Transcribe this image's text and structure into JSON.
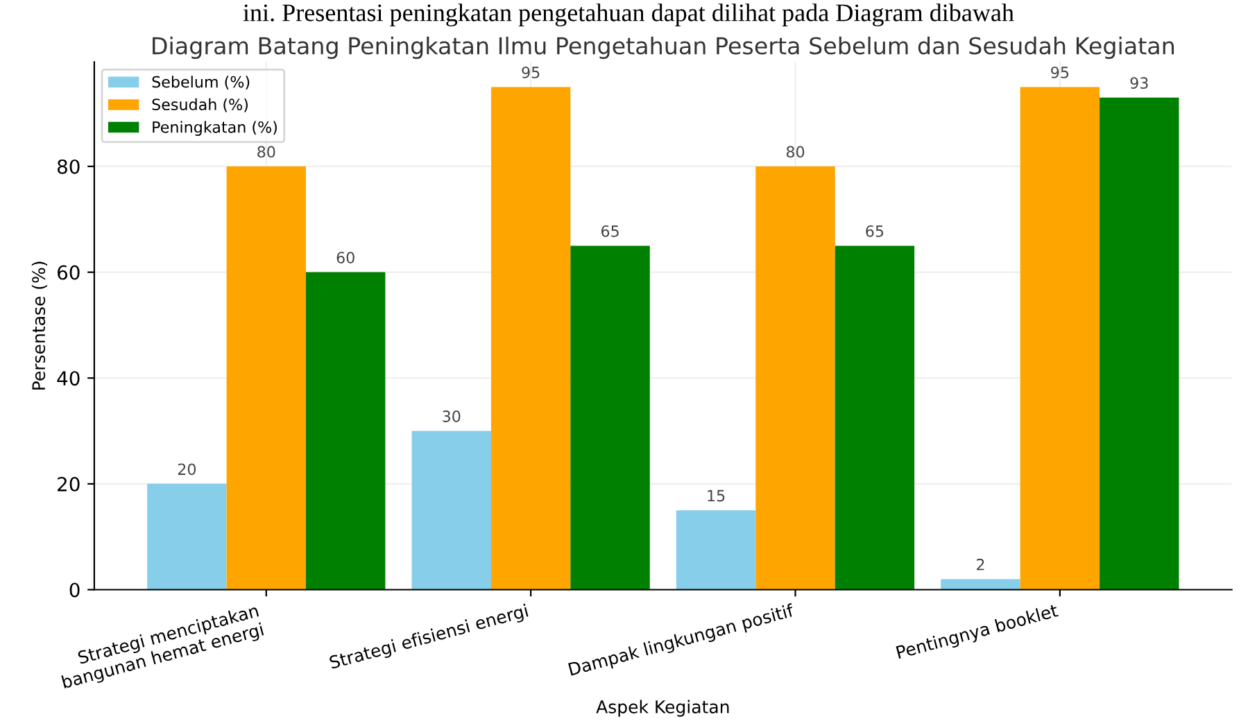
{
  "chart_data": {
    "type": "bar",
    "title": "Diagram Batang Peningkatan Ilmu Pengetahuan Peserta Sebelum dan Sesudah Kegiatan",
    "annotations": [
      "ini. Presentasi peningkatan pengetahuan dapat dilihat pada Diagram dibawah"
    ],
    "xlabel": "Aspek Kegiatan",
    "ylabel": "Persentase (%)",
    "categories": [
      "Strategi menciptakan\nbangunan hemat energi",
      "Strategi efisiensi energi",
      "Dampak lingkungan positif",
      "Pentingnya booklet"
    ],
    "series": [
      {
        "name": "Sebelum (%)",
        "color": "#87ceeb",
        "values": [
          20,
          30,
          15,
          2
        ]
      },
      {
        "name": "Sesudah (%)",
        "color": "#ffa500",
        "values": [
          80,
          95,
          80,
          95
        ]
      },
      {
        "name": "Peningkatan (%)",
        "color": "#008000",
        "values": [
          60,
          65,
          65,
          93
        ]
      }
    ],
    "ylim": [
      0,
      99.75
    ],
    "yticks": [
      0,
      20,
      40,
      60,
      80
    ],
    "grid": true,
    "legend": "top left",
    "data_labels": true
  }
}
